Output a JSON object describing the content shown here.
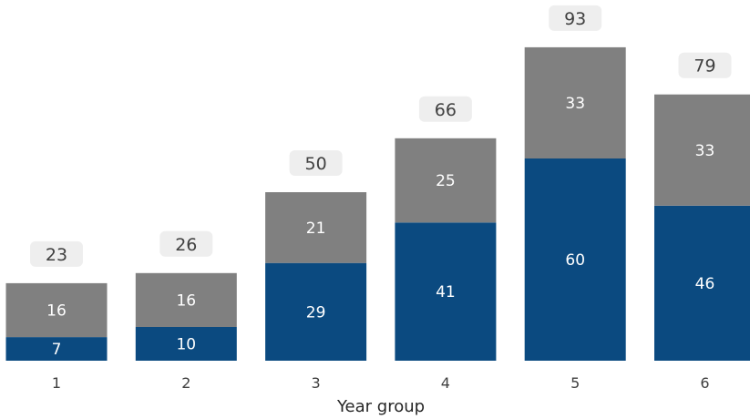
{
  "chart_data": {
    "type": "bar",
    "stacked": true,
    "title": "",
    "xlabel": "Year group",
    "ylabel": "",
    "categories": [
      "1",
      "2",
      "3",
      "4",
      "5",
      "6"
    ],
    "series": [
      {
        "values": [
          7,
          10,
          29,
          41,
          60,
          46
        ],
        "color": "#0b4a80"
      },
      {
        "values": [
          16,
          16,
          21,
          25,
          33,
          33
        ],
        "color": "#808080"
      }
    ],
    "totals": [
      23,
      26,
      50,
      66,
      93,
      79
    ],
    "ylim": [
      0,
      100
    ],
    "grid": false,
    "legend": "none",
    "total_label_background": "#eeeeee"
  }
}
